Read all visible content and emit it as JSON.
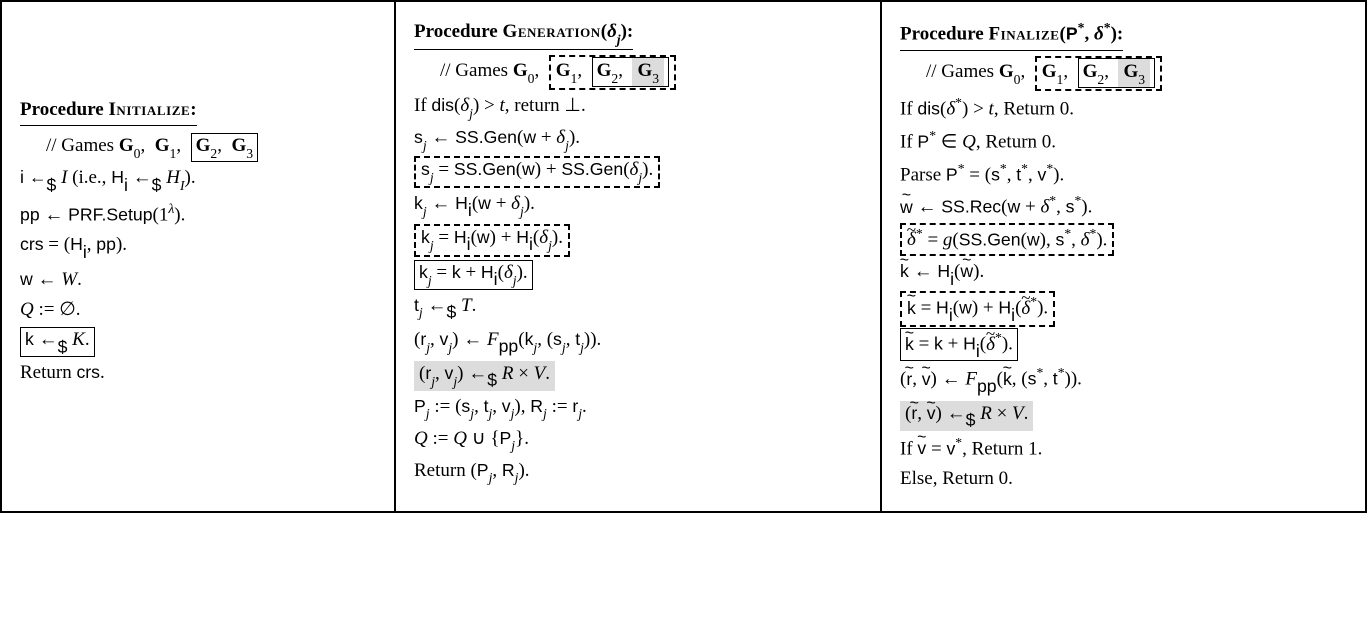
{
  "col1": {
    "header_label": "Procedure",
    "header_name": "Initialize",
    "comment_prefix": "// Games ",
    "g0": "G",
    "sub0": "0",
    "g1": "G",
    "sub1": "1",
    "g2": "G",
    "sub2": "2",
    "g3": "G",
    "sub3": "3",
    "l1_a": "i ←",
    "l1_dollar": "$",
    "l1_b": " ",
    "l1_cal_I": "I",
    "l1_c": " (i.e., ",
    "l1_sf": "H",
    "l1_sub_i": "i",
    "l1_d": " ←",
    "l1_e": " ",
    "l1_cal_H": "H",
    "l1_cal_H_sub": "I",
    "l1_f": ").",
    "l2_a": "pp",
    "l2_arr": " ← ",
    "l2_b": "PRF.Setup",
    "l2_c": "(1",
    "l2_sup": "λ",
    "l2_d": ").",
    "l3_a": "crs",
    "l3_eq": " = (",
    "l3_b": "H",
    "l3_bi": "i",
    "l3_c": ", ",
    "l3_d": "pp",
    "l3_e": ").",
    "l4_a": "w",
    "l4_b": " ← ",
    "l4_c": "W",
    "l4_d": ".",
    "l5_a": "Q",
    "l5_b": " := ∅.",
    "l6_a": "k",
    "l6_b": " ←",
    "l6_dollar": "$",
    "l6_c": " ",
    "l6_cal": "K",
    "l6_d": ".",
    "l7": "Return ",
    "l7_b": "crs",
    "l7_c": "."
  },
  "col2": {
    "header_label": "Procedure",
    "header_name": "Generation",
    "header_arg_open": "(",
    "header_arg_delta": "δ",
    "header_arg_sub": "j",
    "header_arg_close": "):",
    "comment_prefix": "// Games ",
    "g0": "G",
    "sub0": "0",
    "g1": "G",
    "sub1": "1",
    "g2": "G",
    "sub2": "2",
    "g3": "G",
    "sub3": "3",
    "l1_a": "If ",
    "l1_dis": "dis",
    "l1_b": "(",
    "l1_d": "δ",
    "l1_dj": "j",
    "l1_c": ") > ",
    "l1_t": "t",
    "l1_e": ", return ⊥.",
    "l2_a": "s",
    "l2_aj": "j",
    "l2_b": " ← ",
    "l2_c": "SS.Gen",
    "l2_d": "(",
    "l2_e": "w",
    "l2_f": " + ",
    "l2_g": "δ",
    "l2_gj": "j",
    "l2_h": ").",
    "l3_a": "s",
    "l3_aj": "j",
    "l3_b": " = ",
    "l3_c": "SS.Gen",
    "l3_d": "(",
    "l3_e": "w",
    "l3_f": ") + ",
    "l3_g": "SS.Gen",
    "l3_h": "(",
    "l3_i": "δ",
    "l3_ij": "j",
    "l3_k": ").",
    "l4_a": "k",
    "l4_aj": "j",
    "l4_b": " ← ",
    "l4_c": "H",
    "l4_ci": "i",
    "l4_d": "(",
    "l4_e": "w",
    "l4_f": " + ",
    "l4_g": "δ",
    "l4_gj": "j",
    "l4_h": ").",
    "l5_a": "k",
    "l5_aj": "j",
    "l5_b": " = ",
    "l5_c": "H",
    "l5_ci": "i",
    "l5_d": "(",
    "l5_e": "w",
    "l5_f": ") + ",
    "l5_g": "H",
    "l5_gi": "i",
    "l5_h": "(",
    "l5_i": "δ",
    "l5_ij": "j",
    "l5_k": ").",
    "l6_a": "k",
    "l6_aj": "j",
    "l6_b": " = ",
    "l6_c": "k",
    "l6_d": " + ",
    "l6_e": "H",
    "l6_ei": "i",
    "l6_f": "(",
    "l6_g": "δ",
    "l6_gj": "j",
    "l6_h": ").",
    "l7_a": "t",
    "l7_aj": "j",
    "l7_b": " ←",
    "l7_dollar": "$",
    "l7_c": " ",
    "l7_cal": "T",
    "l7_d": ".",
    "l8_a": "(",
    "l8_r": "r",
    "l8_rj": "j",
    "l8_b": ", ",
    "l8_v": "v",
    "l8_vj": "j",
    "l8_c": ") ← ",
    "l8_F": "F",
    "l8_pp": "pp",
    "l8_d": "(",
    "l8_k": "k",
    "l8_kj": "j",
    "l8_e": ", (",
    "l8_s": "s",
    "l8_sj": "j",
    "l8_f": ", ",
    "l8_t": "t",
    "l8_tj": "j",
    "l8_g": ")).",
    "l9_a": "(",
    "l9_r": "r",
    "l9_rj": "j",
    "l9_b": ", ",
    "l9_v": "v",
    "l9_vj": "j",
    "l9_c": ") ←",
    "l9_dollar": "$",
    "l9_d": " ",
    "l9_calR": "R",
    "l9_e": " × ",
    "l9_calV": "V",
    "l9_f": ".",
    "l10_a": "P",
    "l10_aj": "j",
    "l10_b": " := (",
    "l10_s": "s",
    "l10_sj": "j",
    "l10_c": ", ",
    "l10_t": "t",
    "l10_tj": "j",
    "l10_d": ", ",
    "l10_v": "v",
    "l10_vj": "j",
    "l10_e": "), ",
    "l10_R": "R",
    "l10_Rj": "j",
    "l10_f": " := ",
    "l10_r": "r",
    "l10_rj": "j",
    "l10_g": ".",
    "l11_a": "Q",
    "l11_b": " := ",
    "l11_c": "Q",
    "l11_d": " ∪ {",
    "l11_e": "P",
    "l11_ej": "j",
    "l11_f": "}.",
    "l12_a": "Return (",
    "l12_P": "P",
    "l12_Pj": "j",
    "l12_b": ", ",
    "l12_R": "R",
    "l12_Rj": "j",
    "l12_c": ")."
  },
  "col3": {
    "header_label": "Procedure",
    "header_name": "Finalize",
    "header_arg_open": "(",
    "header_arg_P": "P",
    "header_arg_Psup": "*",
    "header_arg_c": ", ",
    "header_arg_d": "δ",
    "header_arg_dsup": "*",
    "header_arg_close": "):",
    "comment_prefix": "// Games ",
    "g0": "G",
    "sub0": "0",
    "g1": "G",
    "sub1": "1",
    "g2": "G",
    "sub2": "2",
    "g3": "G",
    "sub3": "3",
    "l1_a": "If ",
    "l1_dis": "dis",
    "l1_b": "(",
    "l1_d": "δ",
    "l1_dsup": "*",
    "l1_c": ") > ",
    "l1_t": "t",
    "l1_e": ", Return 0.",
    "l2_a": "If ",
    "l2_P": "P",
    "l2_Psup": "*",
    "l2_b": " ∈ ",
    "l2_Q": "Q",
    "l2_c": ", Return 0.",
    "l3_a": "Parse ",
    "l3_P": "P",
    "l3_Psup": "*",
    "l3_b": " = (",
    "l3_s": "s",
    "l3_ssup": "*",
    "l3_c": ", ",
    "l3_t": "t",
    "l3_tsup": "*",
    "l3_d": ", ",
    "l3_v": "v",
    "l3_vsup": "*",
    "l3_e": ").",
    "l4_w": "w",
    "l4_a": " ← ",
    "l4_b": "SS.Rec",
    "l4_c": "(",
    "l4_d": "w",
    "l4_e": " + ",
    "l4_f": "δ",
    "l4_fsup": "*",
    "l4_g": ", ",
    "l4_h": "s",
    "l4_hsup": "*",
    "l4_i": ").",
    "l5_d": "δ",
    "l5_dsup": "*",
    "l5_a": " = ",
    "l5_g": "g",
    "l5_b": "(",
    "l5_c": "SS.Gen",
    "l5_e": "(",
    "l5_f": "w",
    "l5_h": "), ",
    "l5_i": "s",
    "l5_isup": "*",
    "l5_j": ", ",
    "l5_k": "δ",
    "l5_ksup": "*",
    "l5_l": ").",
    "l6_k": "k",
    "l6_a": " ← ",
    "l6_H": "H",
    "l6_Hi": "i",
    "l6_b": "(",
    "l6_w": "w",
    "l6_c": ").",
    "l7_k": "k",
    "l7_a": " = ",
    "l7_H1": "H",
    "l7_H1i": "i",
    "l7_b": "(",
    "l7_w": "w",
    "l7_c": ") + ",
    "l7_H2": "H",
    "l7_H2i": "i",
    "l7_d": "(",
    "l7_dd": "δ",
    "l7_ddsup": "*",
    "l7_e": ").",
    "l8_k": "k",
    "l8_a": " = ",
    "l8_kk": "k",
    "l8_b": " + ",
    "l8_H": "H",
    "l8_Hi": "i",
    "l8_c": "(",
    "l8_d": "δ",
    "l8_dsup": "*",
    "l8_e": ").",
    "l9_a": "(",
    "l9_r": "r",
    "l9_b": ", ",
    "l9_v": "v",
    "l9_c": ") ← ",
    "l9_F": "F",
    "l9_pp": "pp",
    "l9_d": "(",
    "l9_k": "k",
    "l9_e": ", (",
    "l9_s": "s",
    "l9_ssup": "*",
    "l9_f": ", ",
    "l9_t": "t",
    "l9_tsup": "*",
    "l9_g": ")).",
    "l10_a": "(",
    "l10_r": "r",
    "l10_b": ", ",
    "l10_v": "v",
    "l10_c": ") ←",
    "l10_dollar": "$",
    "l10_d": " ",
    "l10_calR": "R",
    "l10_e": " × ",
    "l10_calV": "l10_f",
    "l10_calV_text": "V",
    "l10_f": ".",
    "l11_a": "If ",
    "l11_v": "v",
    "l11_b": " = ",
    "l11_vstar": "v",
    "l11_vstarsup": "*",
    "l11_c": ", Return 1.",
    "l12_a": "Else, Return 0."
  }
}
